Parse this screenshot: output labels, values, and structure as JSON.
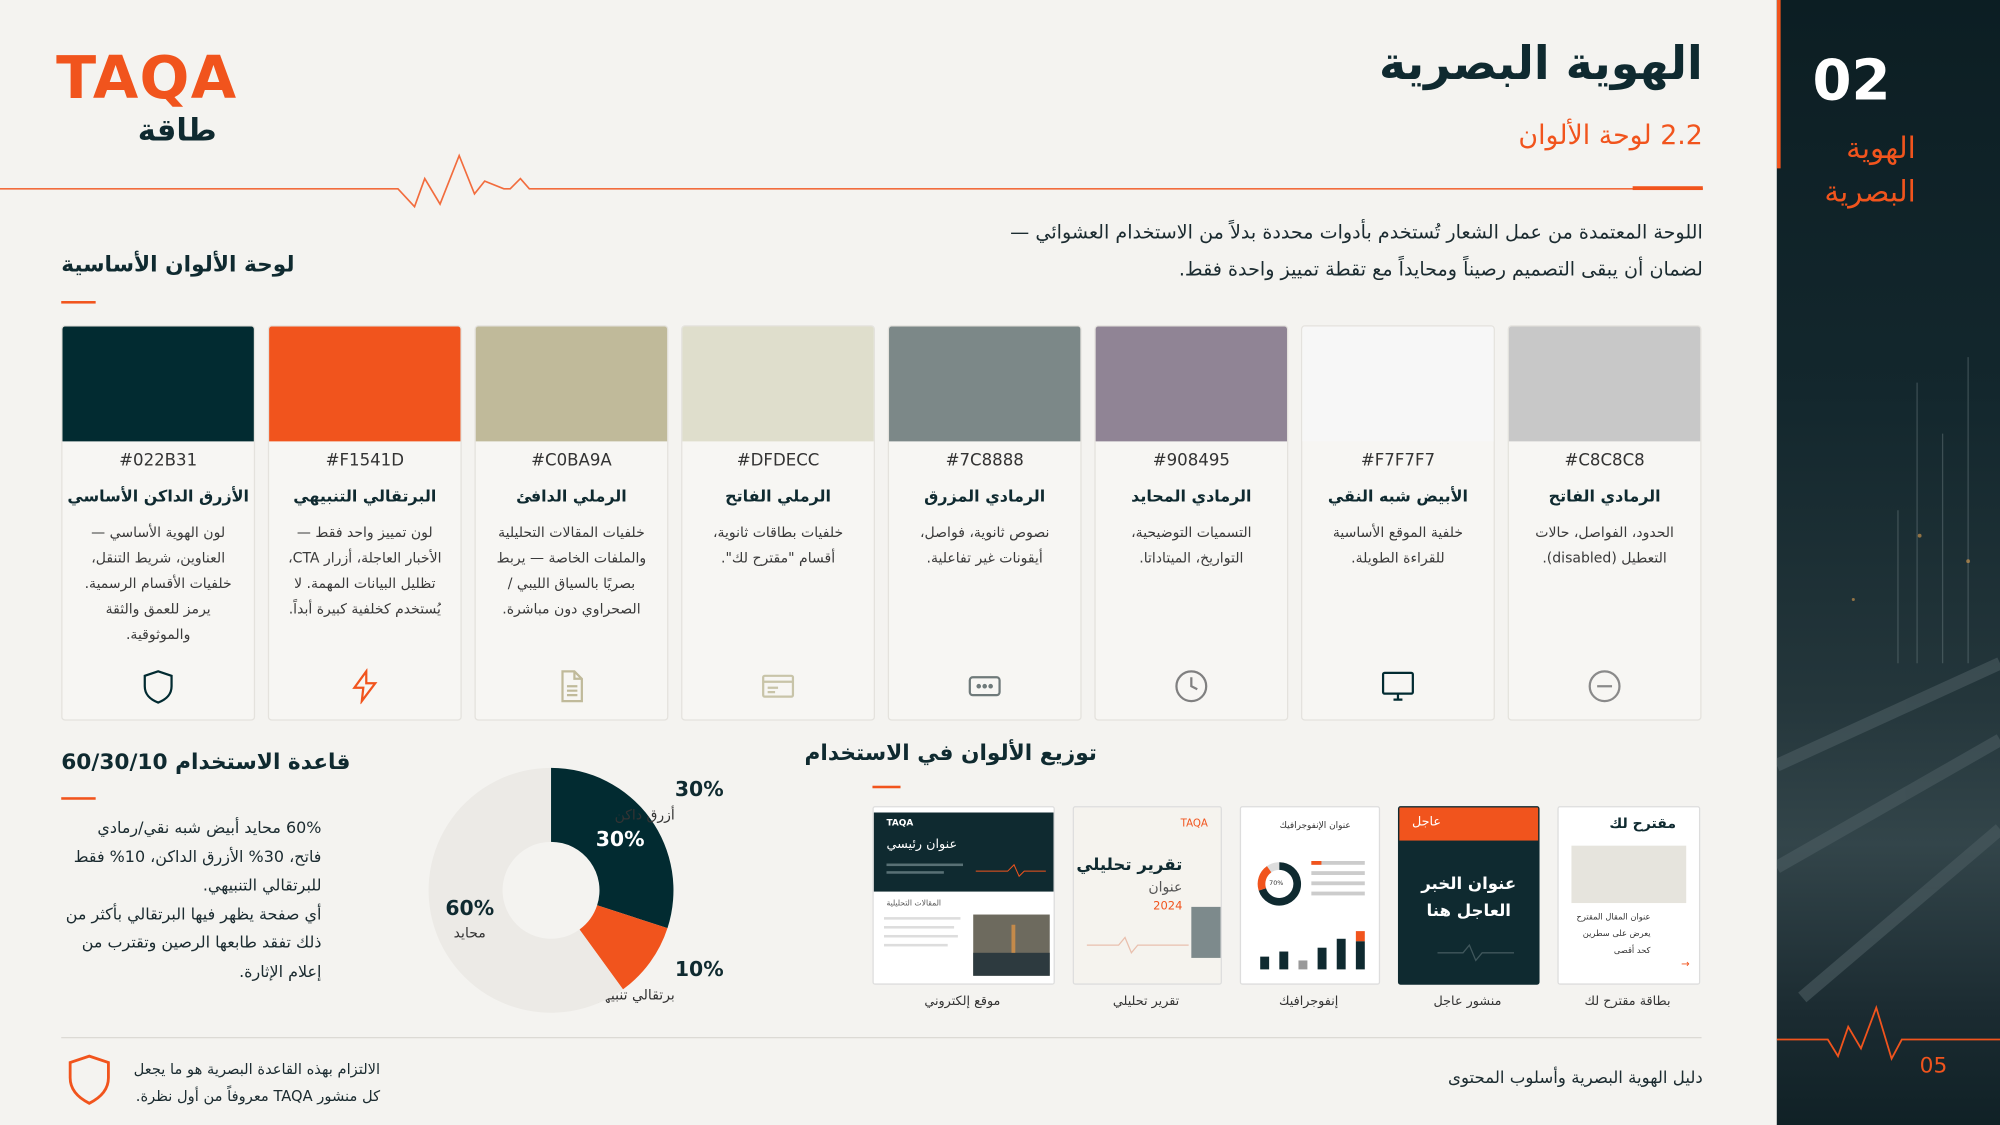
{
  "logo": {
    "latin": "TAQA",
    "arabic": "طاقة"
  },
  "header": {
    "title": "الهوية البصرية",
    "subtitle": "2.2 لوحة الألوان",
    "intro": [
      "اللوحة المعتمدة من عمل الشعار تُستخدم بأدوات محددة بدلاً من الاستخدام العشوائي —",
      "لضمان أن يبقى التصميم رصيناً ومحايداً مع تقطة تمييز واحدة فقط."
    ]
  },
  "sidebar": {
    "number": "02",
    "label": "الهوية البصرية",
    "page": "05"
  },
  "palette": {
    "title": "لوحة الألوان الأساسية",
    "swatches": [
      {
        "hex": "#022B31",
        "name": "الأزرق الداكن الأساسي",
        "description": "لون الهوية الأساسي — العناوين، شريط التنقل، خلفيات الأقسام الرسمية. يرمز للعمق والثقة والموثوقية."
      },
      {
        "hex": "#F1541D",
        "name": "البرتقالي التنبيهي",
        "description": "لون تمييز واحد فقط — الأخبار العاجلة، أزرار CTA، تظليل البيانات المهمة. لا يُستخدم كخلفية كبيرة أبداً."
      },
      {
        "hex": "#C0BA9A",
        "name": "الرملي الدافئ",
        "description": "خلفيات المقالات التحليلية والملفات الخاصة — يربط بصريًا بالسياق الليبي / الصحراوي دون مباشرة."
      },
      {
        "hex": "#DFDECC",
        "name": "الرملي الفاتح",
        "description": "خلفيات بطاقات ثانوية، أقسام \"مقترح لك\"."
      },
      {
        "hex": "#7C8888",
        "name": "الرمادي المزرق",
        "description": "نصوص ثانوية، فواصل، أيقونات غير تفاعلية."
      },
      {
        "hex": "#908495",
        "name": "الرمادي المحايد",
        "description": "التسميات التوضيحية، التواريخ، الميتاداتا."
      },
      {
        "hex": "#F7F7F7",
        "name": "الأبيض شبه النقي",
        "description": "خلفية الموقع الأساسية للقراءة الطويلة."
      },
      {
        "hex": "#C8C8C8",
        "name": "الرمادي الفاتح",
        "description": "الحدود، الفواصل، حالات التعطيل (disabled)."
      }
    ]
  },
  "usage_rule": {
    "title": "قاعدة الاستخدام 60/30/10",
    "paragraphs": [
      "60% محايد أبيض شبه نقي/رمادي فاتح، 30% الأزرق الداكن، 10% فقط للبرتقالي التنبيهي.",
      "أي صفحة يظهر فيها البرتقالي بأكثر من ذلك تفقد طابعها الرصين وتقترب من إعلام الإثارة."
    ]
  },
  "chart_data": {
    "type": "donut",
    "categories": [
      "أزرق داكن",
      "برتقالي تنبيهي",
      "محايد"
    ],
    "values": [
      30,
      10,
      60
    ],
    "value_labels": [
      "30%",
      "10%",
      "60%"
    ],
    "colors": [
      "#022B31",
      "#F1541D",
      "#ECEAE6"
    ]
  },
  "distribution": {
    "title": "توزيع الألوان في الاستخدام",
    "examples": [
      {
        "caption": "موقع إلكتروني",
        "logo": "TAQA",
        "headline": "عنوان رئيسي",
        "section": "المقالات التحليلية"
      },
      {
        "caption": "تقرير تحليلي",
        "logo": "TAQA",
        "title": "تقرير تحليلي",
        "subtitle": "عنوان",
        "year": "2024"
      },
      {
        "caption": "إنفوجرافيك",
        "title": "عنوان الإنفوجرافيك",
        "stat": "70%"
      },
      {
        "caption": "منشور عاجل",
        "tag": "عاجل",
        "headline": "عنوان الخبر العاجل هنا"
      },
      {
        "caption": "بطاقة مقترح لك",
        "tag": "مقترح لك",
        "headline": "عنوان المقال المقترح يعرض على سطرين كحد أقصى"
      }
    ]
  },
  "footer": {
    "note": [
      "الالتزام بهذه القاعدة البصرية هو ما يجعل",
      "كل منشور TAQA معروفاً من أول نظرة."
    ],
    "guide": "دليل الهوية البصرية وأسلوب المحتوى"
  }
}
